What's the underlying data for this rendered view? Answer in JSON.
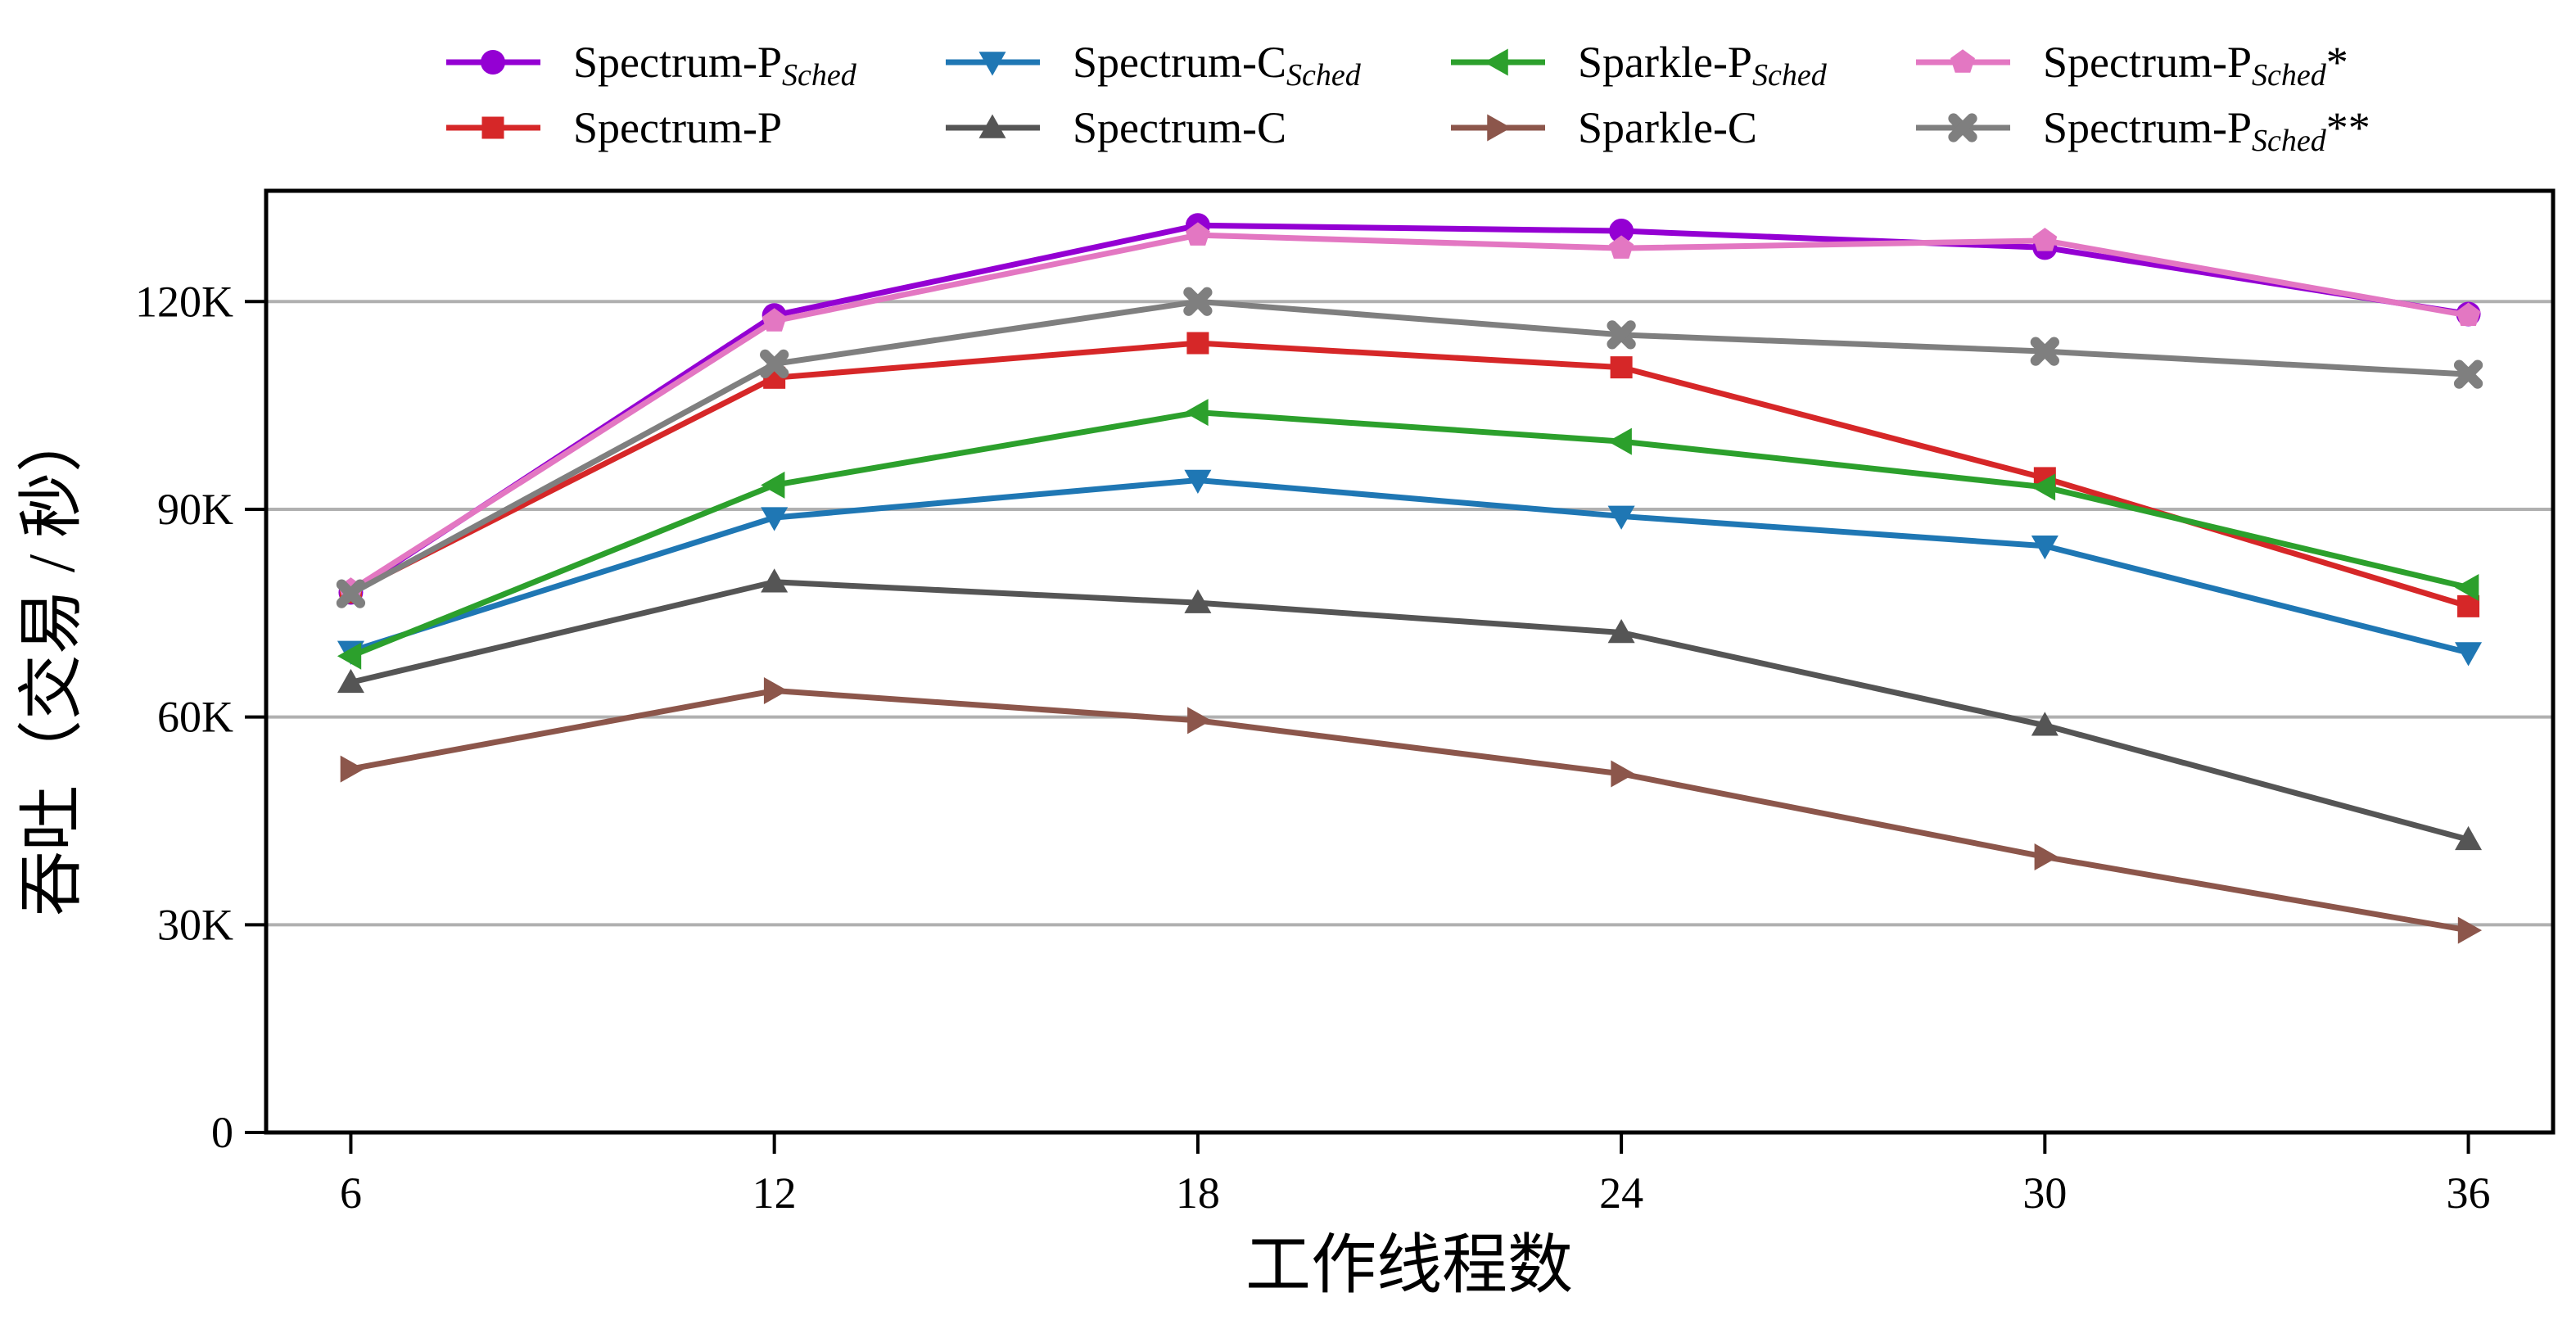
{
  "chart_data": {
    "type": "line",
    "xlabel": "工作线程数",
    "ylabel": "吞吐（交易 / 秒）",
    "x": [
      6,
      12,
      18,
      24,
      30,
      36
    ],
    "xticks": [
      "6",
      "12",
      "18",
      "24",
      "30",
      "36"
    ],
    "xlim": [
      4.8,
      37.2
    ],
    "ylim": [
      0,
      136000
    ],
    "yticks": [
      0,
      30000,
      60000,
      90000,
      120000
    ],
    "ytick_labels": [
      "0",
      "30K",
      "60K",
      "90K",
      "120K"
    ],
    "grid": "horizontal",
    "legend_position": "top-outside",
    "series": [
      {
        "name": "Spectrum-P",
        "sub": "Sched",
        "suffix": "",
        "color": "#9400d3",
        "marker": "circle",
        "values": [
          78000,
          118000,
          131000,
          130200,
          127800,
          118200
        ]
      },
      {
        "name": "Spectrum-P",
        "sub": "",
        "suffix": "",
        "color": "#d62728",
        "marker": "square",
        "values": [
          78000,
          109000,
          114000,
          110500,
          94500,
          76000
        ]
      },
      {
        "name": "Spectrum-C",
        "sub": "Sched",
        "suffix": "",
        "color": "#1f77b4",
        "marker": "triangle-down",
        "values": [
          69500,
          88800,
          94200,
          89000,
          84700,
          69300
        ]
      },
      {
        "name": "Spectrum-C",
        "sub": "",
        "suffix": "",
        "color": "#555555",
        "marker": "triangle-up",
        "values": [
          65000,
          79500,
          76500,
          72200,
          58800,
          42300
        ]
      },
      {
        "name": "Sparkle-P",
        "sub": "Sched",
        "suffix": "",
        "color": "#2ca02c",
        "marker": "triangle-left",
        "values": [
          68800,
          93500,
          104000,
          99800,
          93200,
          78700
        ]
      },
      {
        "name": "Sparkle-C",
        "sub": "",
        "suffix": "",
        "color": "#8c564b",
        "marker": "triangle-right",
        "values": [
          52500,
          63800,
          59500,
          51800,
          39800,
          29200
        ]
      },
      {
        "name": "Spectrum-P",
        "sub": "Sched",
        "suffix": "*",
        "color": "#e377c2",
        "marker": "pentagon",
        "values": [
          78300,
          117200,
          129600,
          127700,
          128800,
          118000
        ]
      },
      {
        "name": "Spectrum-P",
        "sub": "Sched",
        "suffix": "**",
        "color": "#7f7f7f",
        "marker": "x-filled",
        "values": [
          77800,
          111000,
          120000,
          115200,
          112800,
          109500
        ]
      }
    ]
  }
}
